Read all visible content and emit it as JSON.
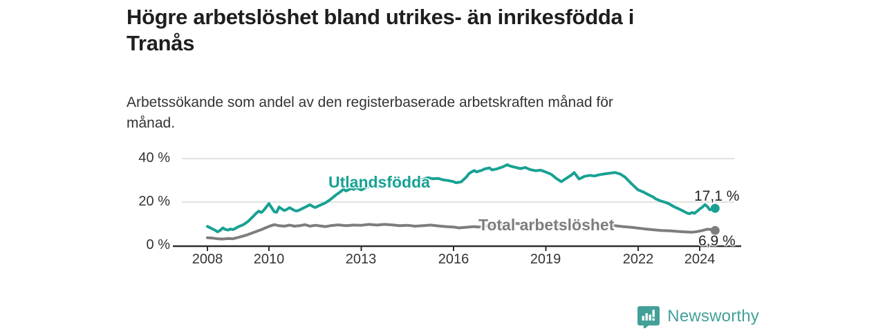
{
  "header": {
    "title": "Högre arbetslöshet bland utrikes- än inrikesfödda i\nTranås",
    "subtitle": "Arbetssökande som andel av den registerbaserade arbetskraften månad för\nmånad."
  },
  "footer": {
    "brand": "Newsworthy",
    "logo_color": "#43a099"
  },
  "chart_data": {
    "type": "line",
    "unit": "%",
    "grid": "horizontal",
    "ylim": [
      0,
      44
    ],
    "xlim": [
      2008,
      2024.75
    ],
    "y_ticks": [
      {
        "label": "0 %",
        "value": 0
      },
      {
        "label": "20 %",
        "value": 20
      },
      {
        "label": "40 %",
        "value": 40
      }
    ],
    "x_ticks": [
      {
        "label": "2008",
        "year": 2008
      },
      {
        "label": "2010",
        "year": 2010
      },
      {
        "label": "2013",
        "year": 2013
      },
      {
        "label": "2016",
        "year": 2016
      },
      {
        "label": "2019",
        "year": 2019
      },
      {
        "label": "2022",
        "year": 2022
      },
      {
        "label": "2024",
        "year": 2024
      }
    ],
    "series": [
      {
        "name": "Utlandsfödda",
        "color": "#18a193",
        "end_label": "17,1 %",
        "end_value": 17.1,
        "points": [
          [
            2008.0,
            8.8
          ],
          [
            2008.08,
            8.2
          ],
          [
            2008.17,
            7.6
          ],
          [
            2008.25,
            7.0
          ],
          [
            2008.33,
            6.3
          ],
          [
            2008.42,
            7.0
          ],
          [
            2008.5,
            8.1
          ],
          [
            2008.58,
            7.4
          ],
          [
            2008.67,
            7.1
          ],
          [
            2008.75,
            7.6
          ],
          [
            2008.83,
            7.3
          ],
          [
            2008.92,
            7.9
          ],
          [
            2009.0,
            8.6
          ],
          [
            2009.17,
            9.6
          ],
          [
            2009.33,
            11.2
          ],
          [
            2009.5,
            13.6
          ],
          [
            2009.58,
            14.8
          ],
          [
            2009.67,
            15.8
          ],
          [
            2009.75,
            15.2
          ],
          [
            2009.83,
            16.2
          ],
          [
            2009.92,
            17.8
          ],
          [
            2010.0,
            19.3
          ],
          [
            2010.08,
            17.5
          ],
          [
            2010.17,
            15.6
          ],
          [
            2010.25,
            15.3
          ],
          [
            2010.33,
            17.7
          ],
          [
            2010.42,
            16.8
          ],
          [
            2010.5,
            16.1
          ],
          [
            2010.58,
            16.6
          ],
          [
            2010.67,
            17.4
          ],
          [
            2010.75,
            16.8
          ],
          [
            2010.83,
            16.1
          ],
          [
            2010.92,
            15.9
          ],
          [
            2011.0,
            16.4
          ],
          [
            2011.17,
            17.6
          ],
          [
            2011.33,
            18.8
          ],
          [
            2011.42,
            18.0
          ],
          [
            2011.5,
            17.5
          ],
          [
            2011.67,
            18.6
          ],
          [
            2011.83,
            19.6
          ],
          [
            2011.92,
            20.4
          ],
          [
            2012.0,
            21.2
          ],
          [
            2012.17,
            23.2
          ],
          [
            2012.33,
            24.8
          ],
          [
            2012.42,
            25.9
          ],
          [
            2012.5,
            25.1
          ],
          [
            2012.58,
            25.6
          ],
          [
            2012.67,
            26.3
          ],
          [
            2012.75,
            25.8
          ],
          [
            2012.83,
            26.6
          ],
          [
            2012.92,
            26.1
          ],
          [
            2013.0,
            25.6
          ],
          [
            2013.17,
            26.8
          ],
          [
            2013.33,
            27.3
          ],
          [
            2013.5,
            26.9
          ],
          [
            2013.67,
            27.6
          ],
          [
            2013.83,
            28.1
          ],
          [
            2014.0,
            28.5
          ],
          [
            2014.17,
            28.2
          ],
          [
            2014.33,
            29.0
          ],
          [
            2014.5,
            29.4
          ],
          [
            2014.67,
            29.1
          ],
          [
            2014.83,
            29.8
          ],
          [
            2015.0,
            30.4
          ],
          [
            2015.17,
            31.2
          ],
          [
            2015.33,
            30.7
          ],
          [
            2015.5,
            30.9
          ],
          [
            2015.67,
            30.2
          ],
          [
            2015.83,
            29.9
          ],
          [
            2016.0,
            29.4
          ],
          [
            2016.08,
            28.9
          ],
          [
            2016.25,
            29.3
          ],
          [
            2016.42,
            31.6
          ],
          [
            2016.5,
            33.1
          ],
          [
            2016.58,
            33.8
          ],
          [
            2016.67,
            34.5
          ],
          [
            2016.75,
            33.9
          ],
          [
            2016.92,
            34.6
          ],
          [
            2017.0,
            35.2
          ],
          [
            2017.17,
            35.7
          ],
          [
            2017.25,
            34.8
          ],
          [
            2017.42,
            35.3
          ],
          [
            2017.58,
            36.1
          ],
          [
            2017.75,
            37.2
          ],
          [
            2017.83,
            36.6
          ],
          [
            2018.0,
            36.0
          ],
          [
            2018.17,
            35.4
          ],
          [
            2018.33,
            35.9
          ],
          [
            2018.5,
            34.9
          ],
          [
            2018.67,
            34.4
          ],
          [
            2018.83,
            34.7
          ],
          [
            2019.0,
            33.8
          ],
          [
            2019.17,
            32.8
          ],
          [
            2019.33,
            31.0
          ],
          [
            2019.5,
            29.4
          ],
          [
            2019.67,
            31.0
          ],
          [
            2019.83,
            32.4
          ],
          [
            2019.92,
            33.6
          ],
          [
            2020.08,
            30.6
          ],
          [
            2020.25,
            31.8
          ],
          [
            2020.42,
            32.3
          ],
          [
            2020.58,
            32.0
          ],
          [
            2020.75,
            32.6
          ],
          [
            2020.92,
            33.0
          ],
          [
            2021.08,
            33.3
          ],
          [
            2021.25,
            33.6
          ],
          [
            2021.42,
            32.9
          ],
          [
            2021.58,
            31.4
          ],
          [
            2021.75,
            28.9
          ],
          [
            2021.92,
            26.6
          ],
          [
            2022.0,
            25.6
          ],
          [
            2022.17,
            24.6
          ],
          [
            2022.33,
            23.4
          ],
          [
            2022.5,
            22.2
          ],
          [
            2022.58,
            21.4
          ],
          [
            2022.75,
            20.4
          ],
          [
            2022.92,
            19.7
          ],
          [
            2023.0,
            19.2
          ],
          [
            2023.17,
            17.8
          ],
          [
            2023.33,
            16.8
          ],
          [
            2023.5,
            15.6
          ],
          [
            2023.58,
            15.0
          ],
          [
            2023.67,
            14.6
          ],
          [
            2023.75,
            15.2
          ],
          [
            2023.83,
            14.8
          ],
          [
            2023.92,
            15.8
          ],
          [
            2024.0,
            16.8
          ],
          [
            2024.08,
            17.6
          ],
          [
            2024.17,
            18.8
          ],
          [
            2024.25,
            17.9
          ],
          [
            2024.33,
            16.4
          ],
          [
            2024.42,
            16.9
          ],
          [
            2024.5,
            17.1
          ]
        ]
      },
      {
        "name": "Total arbetslöshet",
        "color": "#7d7d7d",
        "end_label": "6,9 %",
        "end_value": 6.9,
        "points": [
          [
            2008.0,
            3.6
          ],
          [
            2008.17,
            3.4
          ],
          [
            2008.33,
            3.1
          ],
          [
            2008.5,
            3.0
          ],
          [
            2008.67,
            3.2
          ],
          [
            2008.83,
            3.1
          ],
          [
            2009.0,
            3.7
          ],
          [
            2009.25,
            4.7
          ],
          [
            2009.5,
            6.0
          ],
          [
            2009.75,
            7.3
          ],
          [
            2009.92,
            8.3
          ],
          [
            2010.0,
            8.8
          ],
          [
            2010.17,
            9.6
          ],
          [
            2010.33,
            9.1
          ],
          [
            2010.5,
            8.9
          ],
          [
            2010.67,
            9.4
          ],
          [
            2010.83,
            8.9
          ],
          [
            2011.0,
            9.1
          ],
          [
            2011.17,
            9.6
          ],
          [
            2011.33,
            8.9
          ],
          [
            2011.5,
            9.3
          ],
          [
            2011.67,
            9.0
          ],
          [
            2011.83,
            8.7
          ],
          [
            2012.0,
            9.1
          ],
          [
            2012.25,
            9.5
          ],
          [
            2012.5,
            9.1
          ],
          [
            2012.75,
            9.4
          ],
          [
            2013.0,
            9.3
          ],
          [
            2013.25,
            9.7
          ],
          [
            2013.5,
            9.4
          ],
          [
            2013.75,
            9.7
          ],
          [
            2014.0,
            9.5
          ],
          [
            2014.25,
            9.1
          ],
          [
            2014.5,
            9.3
          ],
          [
            2014.75,
            8.9
          ],
          [
            2015.0,
            9.1
          ],
          [
            2015.25,
            9.4
          ],
          [
            2015.5,
            9.0
          ],
          [
            2015.75,
            8.7
          ],
          [
            2016.0,
            8.5
          ],
          [
            2016.17,
            8.1
          ],
          [
            2016.42,
            8.4
          ],
          [
            2016.67,
            8.7
          ],
          [
            2016.83,
            8.5
          ],
          [
            2017.0,
            8.9
          ],
          [
            2017.25,
            9.3
          ],
          [
            2017.5,
            9.6
          ],
          [
            2017.75,
            9.9
          ],
          [
            2018.0,
            10.2
          ],
          [
            2018.25,
            9.9
          ],
          [
            2018.5,
            10.1
          ],
          [
            2018.75,
            9.8
          ],
          [
            2019.0,
            9.9
          ],
          [
            2019.25,
            9.5
          ],
          [
            2019.5,
            9.3
          ],
          [
            2019.75,
            9.6
          ],
          [
            2020.0,
            9.8
          ],
          [
            2020.25,
            10.1
          ],
          [
            2020.5,
            9.8
          ],
          [
            2020.75,
            9.5
          ],
          [
            2021.0,
            9.4
          ],
          [
            2021.25,
            9.1
          ],
          [
            2021.5,
            8.7
          ],
          [
            2021.75,
            8.4
          ],
          [
            2022.0,
            8.0
          ],
          [
            2022.25,
            7.6
          ],
          [
            2022.5,
            7.2
          ],
          [
            2022.75,
            6.9
          ],
          [
            2023.0,
            6.8
          ],
          [
            2023.25,
            6.5
          ],
          [
            2023.5,
            6.3
          ],
          [
            2023.75,
            6.1
          ],
          [
            2023.92,
            6.4
          ],
          [
            2024.08,
            6.9
          ],
          [
            2024.25,
            7.5
          ],
          [
            2024.42,
            7.3
          ],
          [
            2024.5,
            6.9
          ]
        ]
      }
    ]
  }
}
